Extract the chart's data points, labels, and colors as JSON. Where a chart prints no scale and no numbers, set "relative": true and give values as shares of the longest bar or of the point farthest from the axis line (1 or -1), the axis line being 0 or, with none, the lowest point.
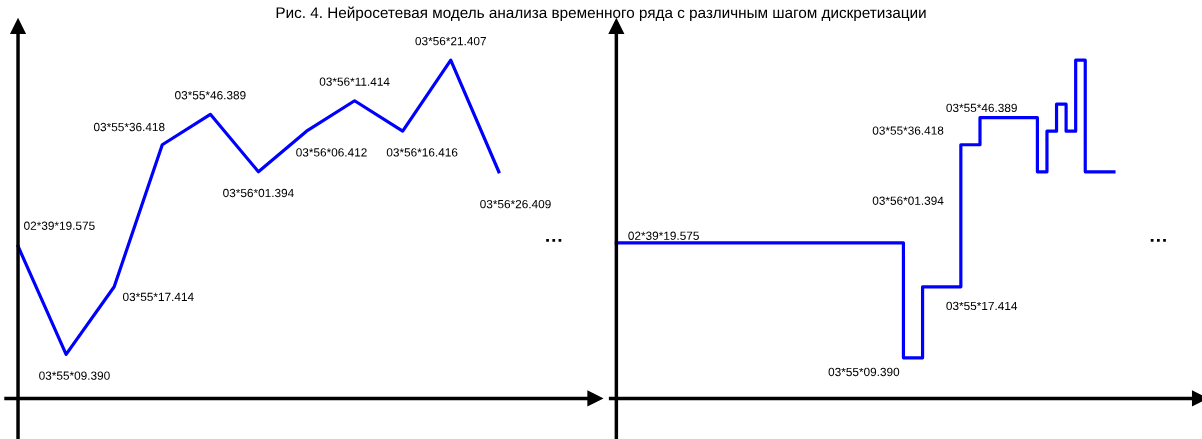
{
  "chart_data": [
    {
      "type": "line",
      "title": "Рис. 4. Нейросетевая модель анализа временного ряда с различным шагом дискретизации",
      "relative": true,
      "tick_labels": false,
      "categories": [
        null,
        null,
        null,
        null,
        null,
        null,
        null,
        null,
        null,
        null,
        null
      ],
      "series": [
        {
          "color": "#0000ff",
          "values": [
            0.45,
            0.13,
            0.33,
            0.75,
            0.84,
            0.67,
            0.79,
            0.88,
            0.79,
            1.0,
            0.67
          ]
        }
      ],
      "annotations": [
        "02*39*19.575",
        "03*55*09.390",
        "03*55*17.414",
        "03*55*36.418",
        "03*55*46.389",
        "03*56*01.394",
        "03*56*06.412",
        "03*56*11.414",
        "03*56*16.416",
        "03*56*21.407",
        "03*56*26.409",
        "…"
      ]
    },
    {
      "type": "step",
      "relative": true,
      "tick_labels": false,
      "categories": [
        null,
        null,
        null,
        null,
        null,
        null,
        null,
        null,
        null,
        null,
        null,
        null,
        null,
        null,
        null,
        null,
        null,
        null,
        null,
        null,
        null,
        null,
        null,
        null,
        null,
        null,
        null,
        null,
        null,
        null,
        null,
        null,
        null,
        null,
        null,
        null,
        null,
        null,
        null,
        null,
        null,
        null,
        null,
        null,
        null,
        null,
        null,
        null,
        null,
        null,
        null,
        null,
        null
      ],
      "series": [
        {
          "color": "#0000ff",
          "values": [
            0.46,
            0.46,
            0.46,
            0.46,
            0.46,
            0.46,
            0.46,
            0.46,
            0.46,
            0.46,
            0.46,
            0.46,
            0.46,
            0.46,
            0.46,
            0.46,
            0.46,
            0.46,
            0.46,
            0.46,
            0.46,
            0.46,
            0.46,
            0.46,
            0.46,
            0.46,
            0.46,
            0.46,
            0.46,
            0.46,
            0.12,
            0.12,
            0.33,
            0.33,
            0.33,
            0.33,
            0.75,
            0.75,
            0.83,
            0.83,
            0.83,
            0.83,
            0.83,
            0.83,
            0.67,
            0.79,
            0.87,
            0.79,
            1.0,
            0.67,
            0.67,
            0.67,
            0.67
          ]
        }
      ],
      "annotations": [
        "02*39*19.575",
        "03*55*09.390",
        "03*55*17.414",
        "03*56*01.394",
        "03*55*36.418",
        "03*55*46.389",
        "…"
      ]
    }
  ]
}
